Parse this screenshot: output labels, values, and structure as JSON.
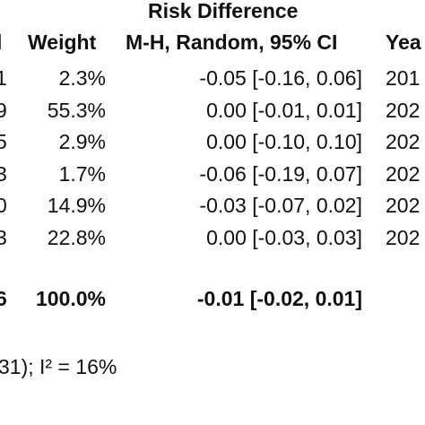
{
  "chart_data": {
    "type": "table",
    "group_header": "Risk Difference",
    "columns": [
      "l",
      "Weight",
      "M-H, Random, 95% CI",
      "Yea"
    ],
    "rows": [
      {
        "cut": "1",
        "weight": "2.3%",
        "ci": "-0.05 [-0.16, 0.06]",
        "year": "201"
      },
      {
        "cut": "9",
        "weight": "55.3%",
        "ci": "0.00 [-0.01, 0.01]",
        "year": "202"
      },
      {
        "cut": "5",
        "weight": "2.9%",
        "ci": "0.00 [-0.10, 0.10]",
        "year": "202"
      },
      {
        "cut": "3",
        "weight": "1.7%",
        "ci": "-0.06 [-0.19, 0.07]",
        "year": "202"
      },
      {
        "cut": "0",
        "weight": "14.9%",
        "ci": "-0.03 [-0.07, 0.02]",
        "year": "202"
      },
      {
        "cut": "3",
        "weight": "22.8%",
        "ci": "0.00 [-0.03, 0.03]",
        "year": "202"
      }
    ],
    "total": {
      "cut": "6",
      "weight": "100.0%",
      "ci": "-0.01 [-0.02, 0.01]"
    },
    "heterogeneity": "31); I² = 16%"
  }
}
